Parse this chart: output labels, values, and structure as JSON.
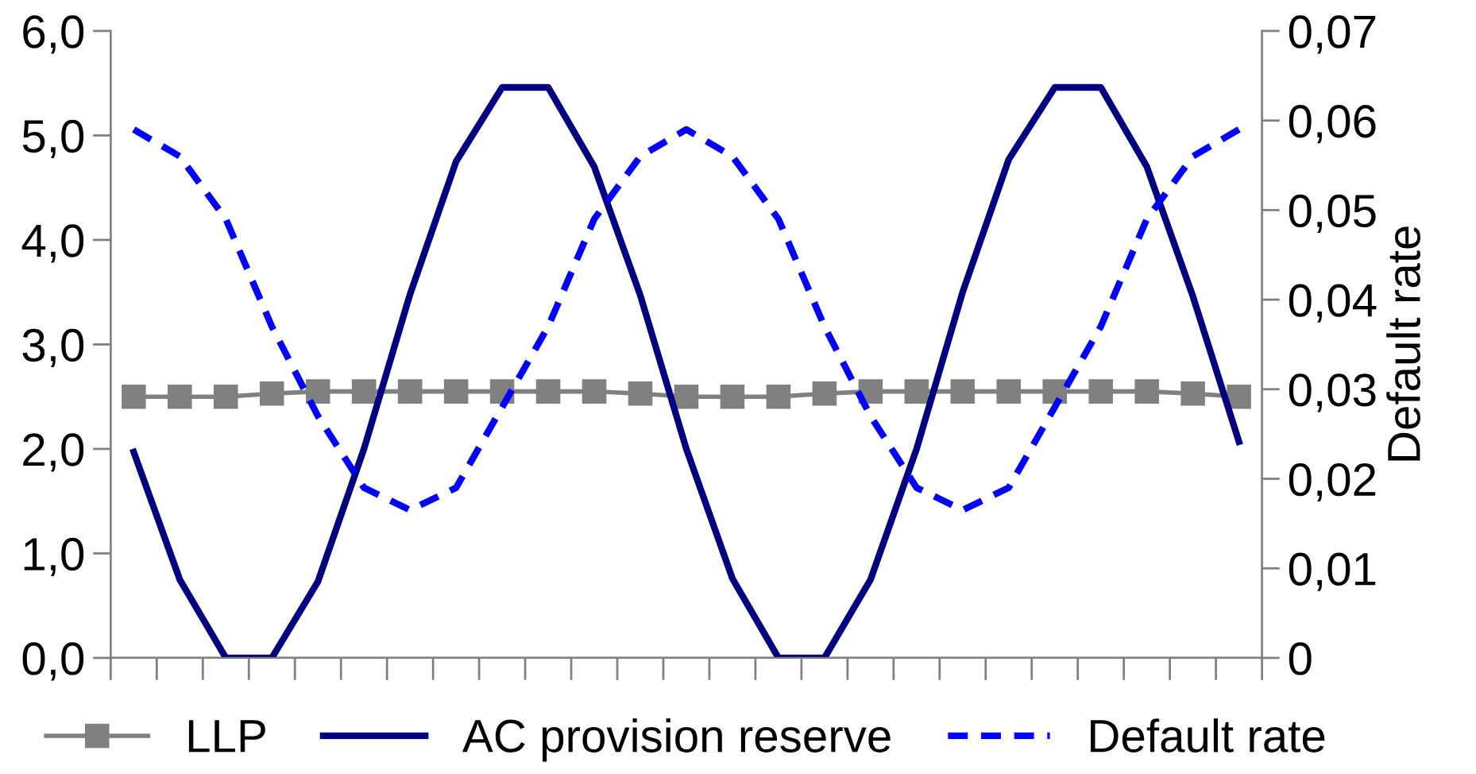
{
  "chart_data": {
    "type": "line",
    "y2label": "Default rate",
    "categories": [
      null,
      null,
      null,
      null,
      null,
      null,
      null,
      null,
      null,
      null,
      null,
      null,
      null,
      null,
      null,
      null,
      null,
      null,
      null,
      null,
      null,
      null,
      null,
      null,
      null
    ],
    "series": [
      {
        "name": "LLP",
        "color": "#808080",
        "marker": "square",
        "line_style": "solid",
        "values": [
          2.5,
          2.5,
          2.5,
          2.53,
          2.55,
          2.55,
          2.55,
          2.55,
          2.55,
          2.55,
          2.55,
          2.53,
          2.5,
          2.5,
          2.5,
          2.53,
          2.55,
          2.55,
          2.55,
          2.55,
          2.55,
          2.55,
          2.55,
          2.53,
          2.5
        ]
      },
      {
        "name": "AC provision reserve",
        "color": "#000080",
        "marker": "none",
        "line_style": "solid",
        "values": [
          1.97,
          0.75,
          0,
          0,
          0.73,
          2.0,
          3.48,
          4.75,
          5.46,
          5.46,
          4.7,
          3.47,
          2.0,
          0.76,
          0,
          0,
          0.75,
          2.0,
          3.5,
          4.77,
          5.46,
          5.46,
          4.7,
          3.46,
          2.07
        ]
      },
      {
        "name": "Default rate",
        "color": "#0000ff",
        "marker": "none",
        "line_style": "dashed",
        "axis": "y2",
        "values": [
          0.059,
          0.056,
          0.049,
          0.037,
          0.027,
          0.019,
          0.0165,
          0.019,
          0.028,
          0.037,
          0.049,
          0.056,
          0.059,
          0.056,
          0.049,
          0.037,
          0.027,
          0.019,
          0.0165,
          0.019,
          0.028,
          0.037,
          0.049,
          0.056,
          0.059
        ]
      }
    ],
    "ylim": [
      0,
      6
    ],
    "yticks": [
      {
        "value": 0,
        "label": "0,0"
      },
      {
        "value": 1,
        "label": "1,0"
      },
      {
        "value": 2,
        "label": "2,0"
      },
      {
        "value": 3,
        "label": "3,0"
      },
      {
        "value": 4,
        "label": "4,0"
      },
      {
        "value": 5,
        "label": "5,0"
      },
      {
        "value": 6,
        "label": "6,0"
      }
    ],
    "y2lim": [
      0,
      0.07
    ],
    "y2ticks": [
      0,
      {
        "value": 0.01,
        "label": "0,01"
      },
      {
        "value": 0.02,
        "label": "0,02"
      },
      {
        "value": 0.03,
        "label": "0,03"
      },
      {
        "value": 0.04,
        "label": "0,04"
      },
      {
        "value": 0.05,
        "label": "0,05"
      },
      {
        "value": 0.06,
        "label": "0,06"
      },
      {
        "value": 0.07,
        "label": "0,07"
      }
    ],
    "grid": false,
    "legend": "bottom"
  }
}
